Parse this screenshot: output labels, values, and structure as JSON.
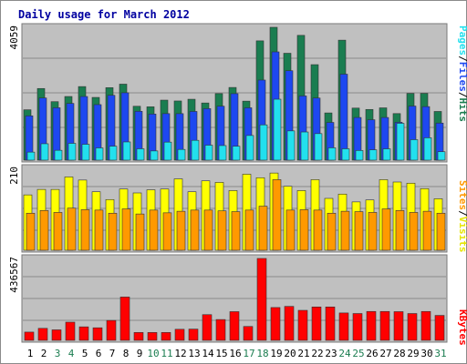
{
  "chart_data": [
    {
      "type": "bar",
      "title": "Daily usage for March 2012",
      "panel": "hits",
      "max_label": "4059",
      "ylim": [
        0,
        4059
      ],
      "categories": [
        "1",
        "2",
        "3",
        "4",
        "5",
        "6",
        "7",
        "8",
        "9",
        "10",
        "11",
        "12",
        "13",
        "14",
        "15",
        "16",
        "17",
        "18",
        "19",
        "20",
        "21",
        "22",
        "23",
        "24",
        "25",
        "26",
        "27",
        "28",
        "29",
        "30",
        "31"
      ],
      "weekend_days": [
        "3",
        "4",
        "10",
        "11",
        "17",
        "18",
        "24",
        "25",
        "31"
      ],
      "series": [
        {
          "name": "Hits",
          "color": "#1a7d50",
          "values": [
            1539,
            2189,
            1787,
            1945,
            2248,
            1917,
            2215,
            2322,
            1647,
            1630,
            1834,
            1808,
            1861,
            1747,
            2033,
            2221,
            1803,
            3645,
            4059,
            3266,
            3813,
            2918,
            1443,
            3666,
            1591,
            1549,
            1598,
            1423,
            2039,
            2041,
            1488
          ]
        },
        {
          "name": "Files",
          "color": "#1d48f0",
          "values": [
            1354,
            1900,
            1601,
            1734,
            1945,
            1697,
            1981,
            2059,
            1493,
            1409,
            1422,
            1421,
            1488,
            1574,
            1649,
            2032,
            1600,
            2447,
            3308,
            2732,
            1962,
            1898,
            1153,
            2627,
            1304,
            1235,
            1304,
            1158,
            1653,
            1636,
            1133
          ]
        },
        {
          "name": "Pages",
          "color": "#22e0ee",
          "values": [
            246,
            502,
            301,
            514,
            485,
            375,
            427,
            557,
            348,
            282,
            551,
            328,
            606,
            458,
            446,
            425,
            754,
            1079,
            1862,
            894,
            861,
            811,
            377,
            348,
            295,
            316,
            346,
            1126,
            626,
            684,
            258
          ]
        }
      ]
    },
    {
      "type": "bar",
      "panel": "visits",
      "max_label": "210",
      "ylim": [
        0,
        210
      ],
      "categories": [
        "1",
        "2",
        "3",
        "4",
        "5",
        "6",
        "7",
        "8",
        "9",
        "10",
        "11",
        "12",
        "13",
        "14",
        "15",
        "16",
        "17",
        "18",
        "19",
        "20",
        "21",
        "22",
        "23",
        "24",
        "25",
        "26",
        "27",
        "28",
        "29",
        "30",
        "31"
      ],
      "series": [
        {
          "name": "Visits",
          "color": "#ffff00",
          "values": [
            142,
            156,
            156,
            188,
            180,
            150,
            130,
            157,
            147,
            155,
            157,
            183,
            150,
            178,
            174,
            153,
            195,
            186,
            198,
            164,
            153,
            181,
            133,
            144,
            124,
            129,
            181,
            175,
            172,
            158,
            132
          ]
        },
        {
          "name": "Sites",
          "color": "#ff9900",
          "values": [
            95,
            102,
            97,
            108,
            104,
            103,
            95,
            106,
            93,
            103,
            96,
            100,
            103,
            103,
            101,
            99,
            103,
            113,
            181,
            103,
            104,
            103,
            95,
            100,
            99,
            97,
            106,
            102,
            97,
            100,
            95
          ]
        }
      ]
    },
    {
      "type": "bar",
      "panel": "kbytes",
      "max_label": "436567",
      "ylim": [
        0,
        436567
      ],
      "categories": [
        "1",
        "2",
        "3",
        "4",
        "5",
        "6",
        "7",
        "8",
        "9",
        "10",
        "11",
        "12",
        "13",
        "14",
        "15",
        "16",
        "17",
        "18",
        "19",
        "20",
        "21",
        "22",
        "23",
        "24",
        "25",
        "26",
        "27",
        "28",
        "29",
        "30",
        "31"
      ],
      "series": [
        {
          "name": "KBytes",
          "color": "#ff0000",
          "values": [
            44000,
            64000,
            56000,
            97000,
            72000,
            67000,
            106000,
            231000,
            42000,
            42000,
            42000,
            59000,
            60000,
            137000,
            111000,
            153000,
            74000,
            436567,
            175000,
            181000,
            160000,
            178000,
            178000,
            146000,
            143000,
            154000,
            154000,
            153000,
            143000,
            154000,
            133000
          ]
        }
      ]
    }
  ]
}
